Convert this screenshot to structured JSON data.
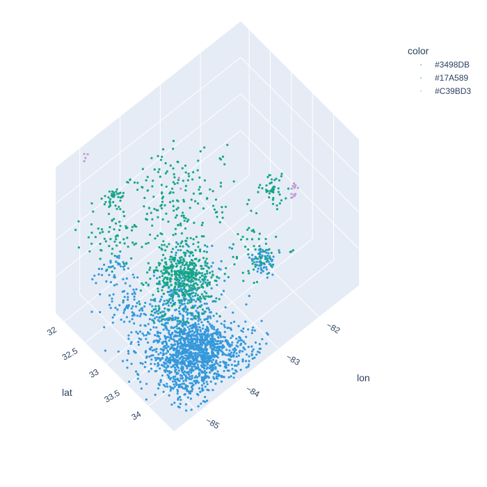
{
  "chart_data": {
    "type": "scatter3d",
    "legend": {
      "title": "color",
      "placement": "top-right",
      "entries": [
        "#3498DB",
        "#17A589",
        "#C39BD3"
      ]
    },
    "colors": {
      "grid": "#ffffff",
      "pane": "#e5ecf6",
      "text": "#2a3f5f"
    },
    "axes": {
      "lat": {
        "label": "lat",
        "ticks": [
          "32",
          "32.5",
          "33",
          "33.5",
          "34"
        ],
        "tick_values": [
          32,
          32.5,
          33,
          33.5,
          34
        ],
        "range": [
          31.8,
          34.6
        ]
      },
      "lon": {
        "label": "lon",
        "ticks": [
          "−85",
          "−84",
          "−83",
          "−82"
        ],
        "tick_values": [
          -85,
          -84,
          -83,
          -82
        ],
        "range": [
          -85.6,
          -81.0
        ]
      },
      "z": {
        "label": "",
        "ticks": [],
        "range": [
          0,
          1
        ]
      }
    },
    "series": [
      {
        "name": "#3498DB",
        "color": "#3498DB",
        "clusters": [
          {
            "lat": 31.9,
            "lon": -84.3,
            "spread": 0.2,
            "count": 70
          },
          {
            "lat": 32.5,
            "lon": -84.6,
            "spread": 0.15,
            "count": 40
          },
          {
            "lat": 33.0,
            "lon": -83.6,
            "spread": 0.18,
            "count": 45
          },
          {
            "lat": 33.7,
            "lon": -84.4,
            "spread": 0.45,
            "count": 900
          },
          {
            "lat": 33.9,
            "lon": -84.2,
            "spread": 0.25,
            "count": 400
          },
          {
            "lat": 33.4,
            "lon": -82.1,
            "spread": 0.12,
            "count": 60
          },
          {
            "lat": 34.2,
            "lon": -84.9,
            "spread": 0.2,
            "count": 90
          },
          {
            "lat": 32.8,
            "lon": -83.0,
            "spread": 0.35,
            "count": 30
          },
          {
            "lat": 34.4,
            "lon": -83.6,
            "spread": 0.25,
            "count": 110
          },
          {
            "lat": 33.3,
            "lon": -83.9,
            "spread": 0.3,
            "count": 60
          }
        ]
      },
      {
        "name": "#17A589",
        "color": "#17A589",
        "clusters": [
          {
            "lat": 31.9,
            "lon": -84.3,
            "spread": 0.1,
            "count": 40
          },
          {
            "lat": 33.7,
            "lon": -84.4,
            "spread": 0.25,
            "count": 420
          },
          {
            "lat": 33.5,
            "lon": -82.0,
            "spread": 0.1,
            "count": 45
          },
          {
            "lat": 32.4,
            "lon": -84.9,
            "spread": 0.3,
            "count": 60
          },
          {
            "lat": 34.3,
            "lon": -83.0,
            "spread": 0.3,
            "count": 70
          },
          {
            "lat": 32.9,
            "lon": -83.7,
            "spread": 0.55,
            "count": 160
          },
          {
            "lat": 33.9,
            "lon": -85.0,
            "spread": 0.35,
            "count": 80
          },
          {
            "lat": 32.2,
            "lon": -83.3,
            "spread": 0.4,
            "count": 60
          }
        ]
      },
      {
        "name": "#C39BD3",
        "color": "#C39BD3",
        "clusters": [
          {
            "lat": 31.85,
            "lon": -84.9,
            "spread": 0.02,
            "count": 4
          },
          {
            "lat": 34.5,
            "lon": -82.5,
            "spread": 0.03,
            "count": 14
          },
          {
            "lat": 33.2,
            "lon": -84.0,
            "spread": 0.02,
            "count": 3
          }
        ]
      }
    ]
  }
}
